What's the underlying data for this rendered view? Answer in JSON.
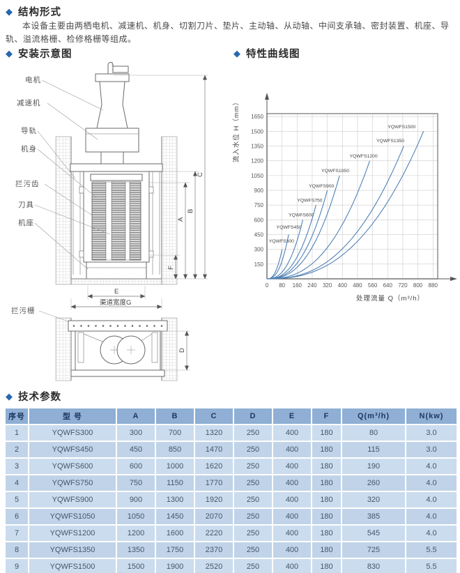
{
  "sections": {
    "structure": {
      "title": "结构形式",
      "body": "本设备主要由两栖电机、减速机、机身、切割刀片、垫片、主动轴、从动轴、中间支承轴、密封装置、机座、导轨、溢流格栅、检修格栅等组成。"
    },
    "install": {
      "title": "安装示意图"
    },
    "curves": {
      "title": "特性曲线图"
    },
    "params": {
      "title": "技术参数"
    }
  },
  "diagram": {
    "labels": {
      "motor": "电机",
      "reducer": "减速机",
      "guide_rail": "导轨",
      "body": "机身",
      "trash_teeth": "拦污齿",
      "cutter": "刀具",
      "base": "机座",
      "trash_rack": "拦污栅"
    },
    "dims": {
      "a": "A",
      "b": "B",
      "c": "C",
      "d": "D",
      "e": "E",
      "f": "F",
      "g": "渠道宽度G"
    }
  },
  "chart_data": {
    "type": "line",
    "title": "特性曲线图",
    "xlabel": "处理流量 Q（m³/h）",
    "ylabel": "流入水位 H（mm）",
    "xlim": [
      0,
      905
    ],
    "ylim": [
      0,
      1680
    ],
    "x_ticks": [
      0,
      80,
      160,
      240,
      320,
      400,
      480,
      560,
      640,
      720,
      800,
      880
    ],
    "y_ticks": [
      150,
      300,
      450,
      600,
      750,
      900,
      1050,
      1200,
      1350,
      1500,
      1650
    ],
    "grid": true,
    "legend_position": "labels-on-curves",
    "curve_color": "#4f81b6",
    "curve_exponent": 2.5,
    "series": [
      {
        "name": "YQWFS300",
        "x": [
          0,
          80
        ],
        "y": [
          0,
          300
        ],
        "label_q": 10,
        "label_h": 370
      },
      {
        "name": "YQWFS450",
        "x": [
          0,
          115
        ],
        "y": [
          0,
          450
        ],
        "label_q": 50,
        "label_h": 510
      },
      {
        "name": "YQWFS600",
        "x": [
          0,
          190
        ],
        "y": [
          0,
          600
        ],
        "label_q": 115,
        "label_h": 635
      },
      {
        "name": "YQWFS750",
        "x": [
          0,
          260
        ],
        "y": [
          0,
          750
        ],
        "label_q": 160,
        "label_h": 785
      },
      {
        "name": "YQWFS900",
        "x": [
          0,
          320
        ],
        "y": [
          0,
          900
        ],
        "label_q": 222,
        "label_h": 930
      },
      {
        "name": "YQWFS1050",
        "x": [
          0,
          385
        ],
        "y": [
          0,
          1050
        ],
        "label_q": 288,
        "label_h": 1085
      },
      {
        "name": "YQWFS1200",
        "x": [
          0,
          545
        ],
        "y": [
          0,
          1200
        ],
        "label_q": 438,
        "label_h": 1235
      },
      {
        "name": "YQWFS1350",
        "x": [
          0,
          725
        ],
        "y": [
          0,
          1350
        ],
        "label_q": 580,
        "label_h": 1390
      },
      {
        "name": "YQWFS1500",
        "x": [
          0,
          830
        ],
        "y": [
          0,
          1500
        ],
        "label_q": 640,
        "label_h": 1530
      }
    ]
  },
  "table": {
    "headers": [
      "序号",
      "型  号",
      "A",
      "B",
      "C",
      "D",
      "E",
      "F",
      "Q(m³/h)",
      "N(kw)"
    ],
    "rows": [
      [
        "1",
        "YQWFS300",
        "300",
        "700",
        "1320",
        "250",
        "400",
        "180",
        "80",
        "3.0"
      ],
      [
        "2",
        "YQWFS450",
        "450",
        "850",
        "1470",
        "250",
        "400",
        "180",
        "115",
        "3.0"
      ],
      [
        "3",
        "YQWFS600",
        "600",
        "1000",
        "1620",
        "250",
        "400",
        "180",
        "190",
        "4.0"
      ],
      [
        "4",
        "YQWFS750",
        "750",
        "1150",
        "1770",
        "250",
        "400",
        "180",
        "260",
        "4.0"
      ],
      [
        "5",
        "YQWFS900",
        "900",
        "1300",
        "1920",
        "250",
        "400",
        "180",
        "320",
        "4.0"
      ],
      [
        "6",
        "YQWFS1050",
        "1050",
        "1450",
        "2070",
        "250",
        "400",
        "180",
        "385",
        "4.0"
      ],
      [
        "7",
        "YQWFS1200",
        "1200",
        "1600",
        "2220",
        "250",
        "400",
        "180",
        "545",
        "4.0"
      ],
      [
        "8",
        "YQWFS1350",
        "1350",
        "1750",
        "2370",
        "250",
        "400",
        "180",
        "725",
        "5.5"
      ],
      [
        "9",
        "YQWFS1500",
        "1500",
        "1900",
        "2520",
        "250",
        "400",
        "180",
        "830",
        "5.5"
      ]
    ]
  },
  "colors": {
    "accent_diamond": "#2767b0",
    "table_header_bg": "#8fafd4",
    "table_header_text": "#1f3864",
    "table_row_odd": "#cbdcee",
    "table_row_even": "#c0d3e8",
    "curve": "#4f81b6",
    "grid": "#cccccc"
  }
}
